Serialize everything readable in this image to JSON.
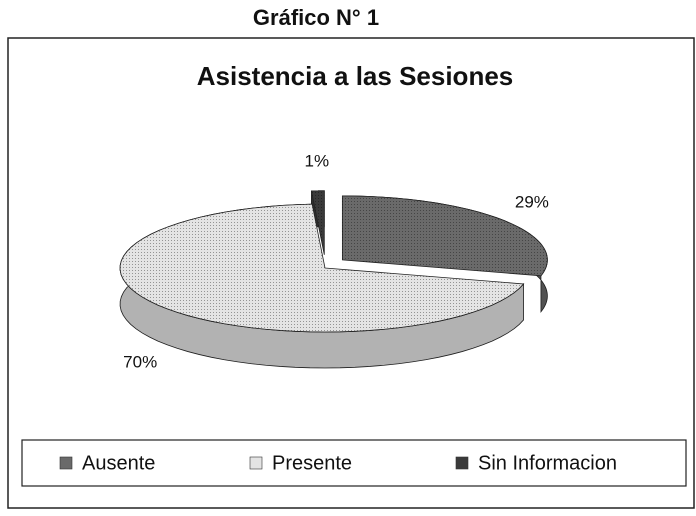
{
  "heading": "Gráfico N° 1",
  "chart_data": {
    "type": "pie",
    "title": "Asistencia a las Sesiones",
    "categories": [
      "Ausente",
      "Presente",
      "Sin Informacion"
    ],
    "values": [
      29,
      70,
      1
    ],
    "value_labels": [
      "29%",
      "70%",
      "1%"
    ],
    "colors": [
      "#6a6a6a",
      "#e4e4e4",
      "#3a3a3a"
    ],
    "legend": "bottom"
  }
}
